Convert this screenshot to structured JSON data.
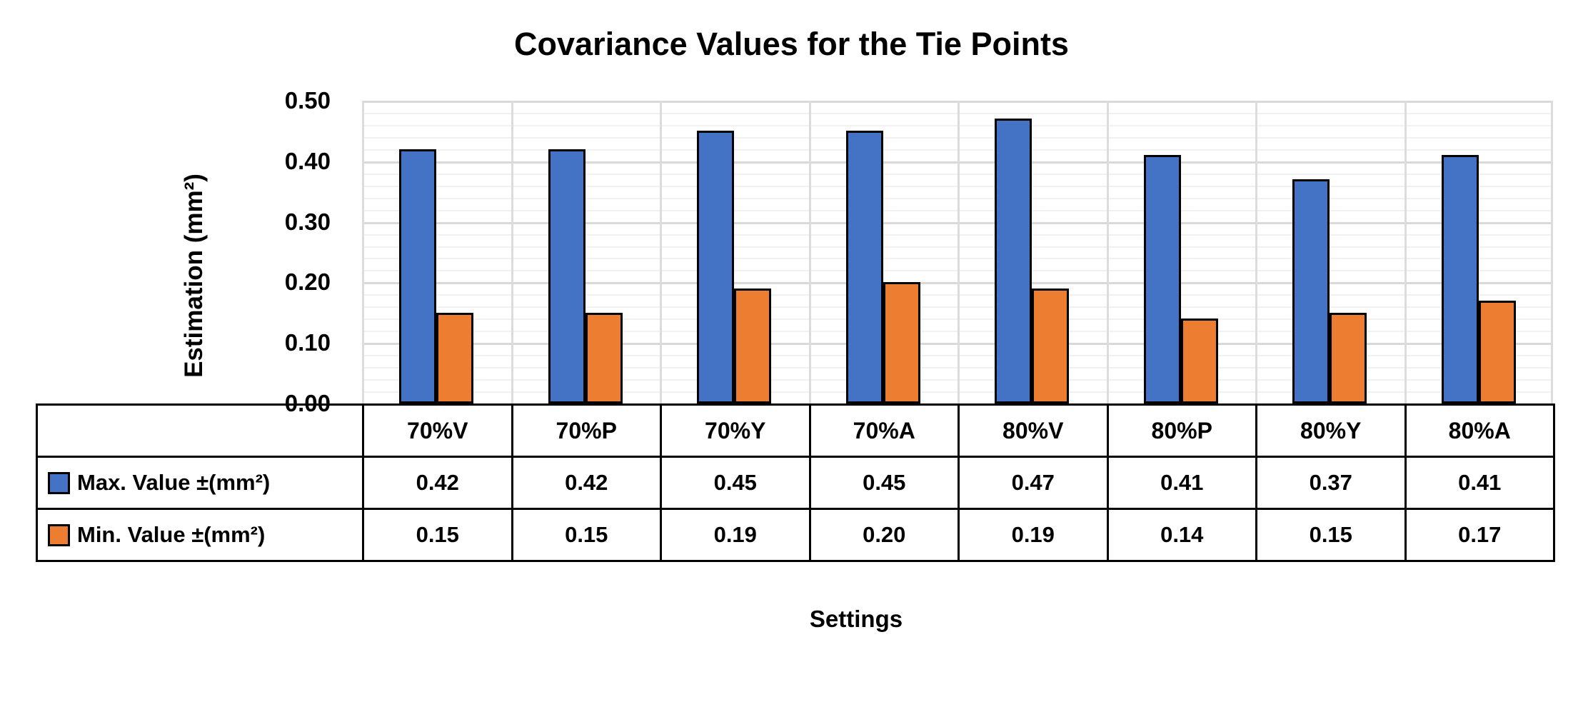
{
  "chart_data": {
    "type": "bar",
    "title": "Covariance Values for the Tie Points",
    "ylabel": "Estimation (mm²)",
    "xlabel": "Settings",
    "categories": [
      "70%V",
      "70%P",
      "70%Y",
      "70%A",
      "80%V",
      "80%P",
      "80%Y",
      "80%A"
    ],
    "series": [
      {
        "name": "Max. Value ±(mm²)",
        "color": "#4472C4",
        "values": [
          0.42,
          0.42,
          0.45,
          0.45,
          0.47,
          0.41,
          0.37,
          0.41
        ]
      },
      {
        "name": "Min. Value ±(mm²)",
        "color": "#ED7D31",
        "values": [
          0.15,
          0.15,
          0.19,
          0.2,
          0.19,
          0.14,
          0.15,
          0.17
        ]
      }
    ],
    "ylim": [
      0,
      0.5
    ],
    "ytick_labels": [
      "0.00",
      "0.10",
      "0.20",
      "0.30",
      "0.40",
      "0.50"
    ],
    "major_unit": 0.1,
    "minor_unit": 0.02,
    "grid": "horizontal major and minor gridlines, vertical lines at category boundaries",
    "legend_position": "row labels with color swatches at left of data table",
    "value_format": "2 decimals"
  },
  "colors": {
    "background": "#FFFFFF",
    "max_series_fill": "#4472C4",
    "min_series_fill": "#ED7D31",
    "bar_border": "#000000",
    "major_gridline": "#D9D9D9",
    "minor_gridline": "#F1F1F1",
    "table_border": "#000000",
    "text": "#000000"
  }
}
